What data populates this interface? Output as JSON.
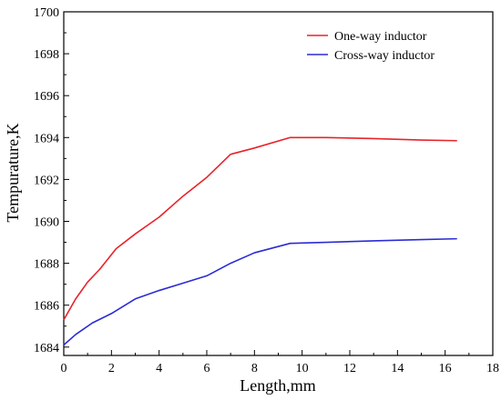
{
  "chart_data": {
    "type": "line",
    "title": "",
    "xlabel": "Length,mm",
    "ylabel": "Tempurature,K",
    "xlim": [
      0,
      18
    ],
    "ylim": [
      1683.6,
      1700
    ],
    "xticks": [
      0,
      2,
      4,
      6,
      8,
      10,
      12,
      14,
      16,
      18
    ],
    "yticks": [
      1684,
      1686,
      1688,
      1690,
      1692,
      1694,
      1696,
      1698,
      1700
    ],
    "grid": false,
    "legend": "top-right",
    "series": [
      {
        "name": "One-way inductor",
        "color": "#e8232a",
        "x": [
          0,
          0.5,
          1.0,
          1.5,
          2.2,
          3.0,
          4.0,
          5.0,
          6.0,
          7.0,
          8.0,
          9.5,
          11.0,
          13.0,
          15.0,
          16.5
        ],
        "y": [
          1685.3,
          1686.3,
          1687.1,
          1687.7,
          1688.7,
          1689.4,
          1690.2,
          1691.2,
          1692.1,
          1693.2,
          1693.5,
          1694.0,
          1694.0,
          1693.95,
          1693.88,
          1693.85
        ]
      },
      {
        "name": "Cross-way inductor",
        "color": "#2b2bd4",
        "x": [
          0,
          0.5,
          1.2,
          2.0,
          3.0,
          4.0,
          5.0,
          6.0,
          7.0,
          8.0,
          9.5,
          11.0,
          13.0,
          15.0,
          16.5
        ],
        "y": [
          1684.1,
          1684.6,
          1685.15,
          1685.6,
          1686.3,
          1686.7,
          1687.05,
          1687.4,
          1688.0,
          1688.5,
          1688.95,
          1689.0,
          1689.07,
          1689.13,
          1689.17
        ]
      }
    ]
  }
}
